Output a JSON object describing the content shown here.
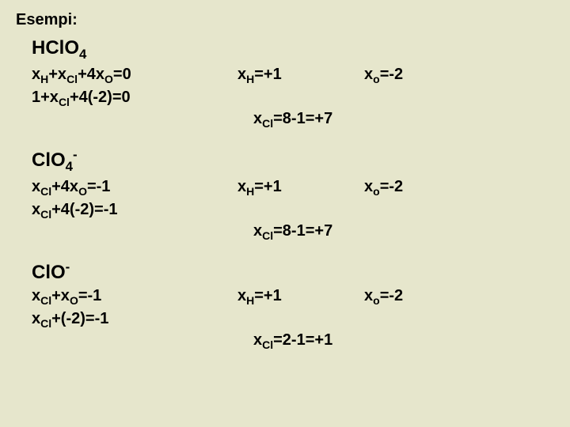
{
  "title": "Esempi:",
  "background_color": "#e6e6cc",
  "text_color": "#000000",
  "font_family": "Comic Sans MS",
  "blocks": [
    {
      "molecule_html": "HClO<sub>4</sub>",
      "eq1": "x<sub>H</sub>+x<sub>Cl</sub>+4x<sub>O</sub>=0",
      "xH": "x<sub>H</sub>=+1",
      "xO": "x<sub>o</sub>=-2",
      "eq2": "1+x<sub>Cl</sub>+4(-2)=0",
      "xCl": "x<sub>Cl</sub>=8-1=+7"
    },
    {
      "molecule_html": "ClO<sub>4</sub><sup>-</sup>",
      "eq1": "x<sub>Cl</sub>+4x<sub>O</sub>=-1",
      "xH": "x<sub>H</sub>=+1",
      "xO": "x<sub>o</sub>=-2",
      "eq2": "x<sub>Cl</sub>+4(-2)=-1",
      "xCl": "x<sub>Cl</sub>=8-1=+7"
    },
    {
      "molecule_html": "ClO<sup>-</sup>",
      "eq1": "x<sub>Cl</sub>+x<sub>O</sub>=-1",
      "xH": "x<sub>H</sub>=+1",
      "xO": "x<sub>o</sub>=-2",
      "eq2": "x<sub>Cl</sub>+(-2)=-1",
      "xCl": "x<sub>Cl</sub>=2-1=+1"
    }
  ]
}
